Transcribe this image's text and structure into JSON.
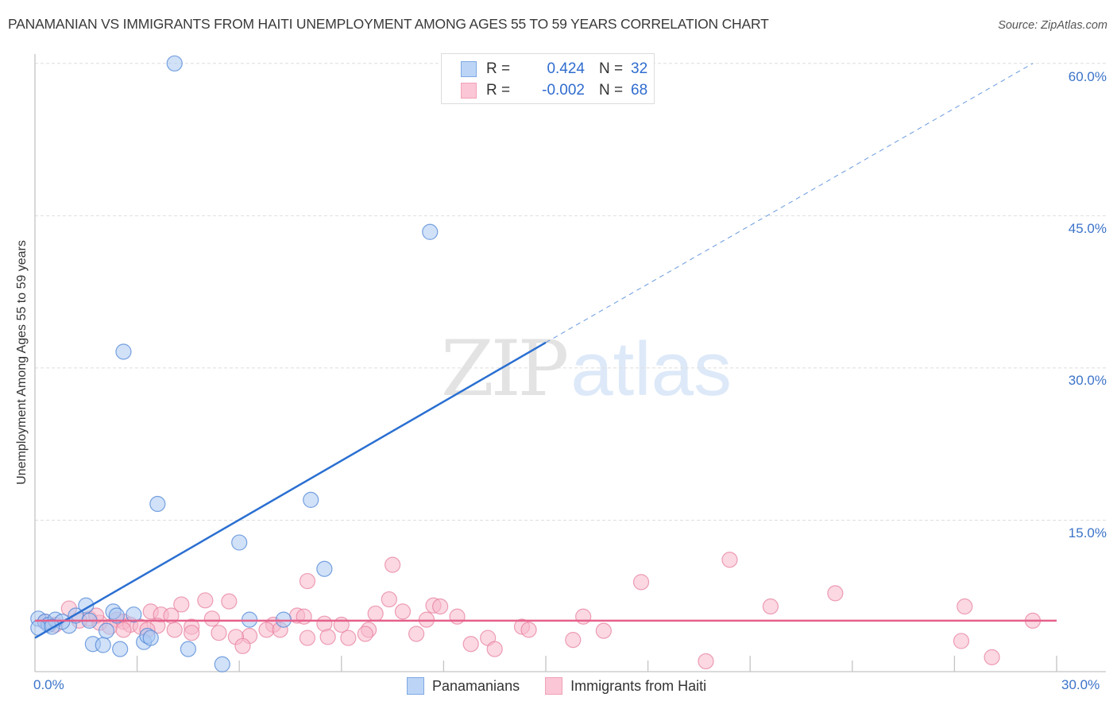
{
  "header": {
    "title": "PANAMANIAN VS IMMIGRANTS FROM HAITI UNEMPLOYMENT AMONG AGES 55 TO 59 YEARS CORRELATION CHART",
    "source": "Source: ZipAtlas.com"
  },
  "watermark": {
    "zip": "ZIP",
    "atlas": "atlas"
  },
  "axes": {
    "ylabel": "Unemployment Among Ages 55 to 59 years",
    "y_ticks": [
      "60.0%",
      "45.0%",
      "30.0%",
      "15.0%"
    ],
    "x_tick_left": "0.0%",
    "x_tick_right": "30.0%"
  },
  "legend": {
    "rows": [
      {
        "r_label": "R =",
        "r_value": "0.424",
        "n_label": "N =",
        "n_value": "32",
        "color": "#a9c8f2"
      },
      {
        "r_label": "R =",
        "r_value": "-0.002",
        "n_label": "N =",
        "n_value": "68",
        "color": "#f7b8cb"
      }
    ]
  },
  "bottom_legend": {
    "items": [
      {
        "label": "Panamanians",
        "color": "#a9c8f2"
      },
      {
        "label": "Immigrants from Haiti",
        "color": "#f7b8cb"
      }
    ]
  },
  "colors": {
    "blue_fill": "#a9c8f2",
    "blue_stroke": "#4f86d6",
    "blue_line": "#2a6fd1",
    "pink_fill": "#f7b8cb",
    "pink_stroke": "#e7809f",
    "pink_line": "#e5608a",
    "tick_text": "#3b73c9"
  },
  "chart_data": {
    "type": "scatter",
    "title": "PANAMANIAN VS IMMIGRANTS FROM HAITI UNEMPLOYMENT AMONG AGES 55 TO 59 YEARS CORRELATION CHART",
    "xlabel": "",
    "ylabel": "Unemployment Among Ages 55 to 59 years",
    "xlim": [
      0,
      30
    ],
    "ylim": [
      0,
      62
    ],
    "x_ticks": [
      0,
      30
    ],
    "y_ticks": [
      15,
      30,
      45,
      60
    ],
    "grid": "horizontal dashed",
    "legend_position": "top-center",
    "series": [
      {
        "name": "Panamanians",
        "R": 0.424,
        "N": 32,
        "trend": {
          "x0": 0,
          "y0": 3.4,
          "x_solid_end": 15.0,
          "y_solid_end": 32.5,
          "x1": 29.3,
          "y1": 60.0
        },
        "points": [
          [
            4.1,
            60.0
          ],
          [
            11.6,
            43.4
          ],
          [
            2.6,
            31.6
          ],
          [
            3.6,
            16.6
          ],
          [
            8.1,
            17.0
          ],
          [
            6.0,
            12.8
          ],
          [
            8.5,
            10.2
          ],
          [
            1.5,
            6.6
          ],
          [
            2.3,
            6.0
          ],
          [
            2.9,
            5.7
          ],
          [
            6.3,
            5.2
          ],
          [
            7.3,
            5.2
          ],
          [
            0.1,
            5.3
          ],
          [
            0.3,
            5.0
          ],
          [
            0.4,
            4.7
          ],
          [
            0.6,
            5.2
          ],
          [
            1.0,
            4.6
          ],
          [
            1.2,
            5.6
          ],
          [
            1.6,
            5.1
          ],
          [
            2.4,
            5.6
          ],
          [
            0.8,
            5.0
          ],
          [
            1.7,
            2.8
          ],
          [
            2.0,
            2.7
          ],
          [
            2.1,
            4.1
          ],
          [
            2.5,
            2.3
          ],
          [
            3.2,
            3.0
          ],
          [
            3.3,
            3.6
          ],
          [
            3.4,
            3.4
          ],
          [
            4.5,
            2.3
          ],
          [
            5.5,
            0.8
          ],
          [
            0.1,
            4.4
          ],
          [
            0.5,
            4.5
          ]
        ]
      },
      {
        "name": "Immigrants from Haiti",
        "R": -0.002,
        "N": 68,
        "trend": {
          "x0": 0,
          "y0": 5.1,
          "x1": 30,
          "y1": 5.1
        },
        "points": [
          [
            10.5,
            10.6
          ],
          [
            20.4,
            11.1
          ],
          [
            8.0,
            9.0
          ],
          [
            17.8,
            8.9
          ],
          [
            23.5,
            7.8
          ],
          [
            10.4,
            7.2
          ],
          [
            5.0,
            7.1
          ],
          [
            5.7,
            7.0
          ],
          [
            4.3,
            6.7
          ],
          [
            21.6,
            6.5
          ],
          [
            27.3,
            6.5
          ],
          [
            11.7,
            6.6
          ],
          [
            11.9,
            6.5
          ],
          [
            3.4,
            6.0
          ],
          [
            1.0,
            6.3
          ],
          [
            3.7,
            5.7
          ],
          [
            10.0,
            5.8
          ],
          [
            10.8,
            6.0
          ],
          [
            7.7,
            5.6
          ],
          [
            7.9,
            5.5
          ],
          [
            12.4,
            5.5
          ],
          [
            16.1,
            5.5
          ],
          [
            11.5,
            5.2
          ],
          [
            5.2,
            5.3
          ],
          [
            2.4,
            5.2
          ],
          [
            29.3,
            5.1
          ],
          [
            1.6,
            5.3
          ],
          [
            1.9,
            4.9
          ],
          [
            2.6,
            5.0
          ],
          [
            2.8,
            4.7
          ],
          [
            3.1,
            4.5
          ],
          [
            2.2,
            4.5
          ],
          [
            7.0,
            4.7
          ],
          [
            9.0,
            4.7
          ],
          [
            8.5,
            4.8
          ],
          [
            14.3,
            4.5
          ],
          [
            4.6,
            4.5
          ],
          [
            3.6,
            4.6
          ],
          [
            3.3,
            4.2
          ],
          [
            4.1,
            4.2
          ],
          [
            6.8,
            4.2
          ],
          [
            7.2,
            4.2
          ],
          [
            2.6,
            4.2
          ],
          [
            14.5,
            4.2
          ],
          [
            9.8,
            4.2
          ],
          [
            16.7,
            4.1
          ],
          [
            4.6,
            3.9
          ],
          [
            5.4,
            3.9
          ],
          [
            6.3,
            3.6
          ],
          [
            9.7,
            3.8
          ],
          [
            11.2,
            3.8
          ],
          [
            5.9,
            3.5
          ],
          [
            8.6,
            3.5
          ],
          [
            8.0,
            3.4
          ],
          [
            9.2,
            3.4
          ],
          [
            13.3,
            3.4
          ],
          [
            15.8,
            3.2
          ],
          [
            27.2,
            3.1
          ],
          [
            12.8,
            2.8
          ],
          [
            6.1,
            2.6
          ],
          [
            13.5,
            2.3
          ],
          [
            19.7,
            1.1
          ],
          [
            28.1,
            1.5
          ],
          [
            1.3,
            5.1
          ],
          [
            0.6,
            4.7
          ],
          [
            0.3,
            5.0
          ],
          [
            1.8,
            5.6
          ],
          [
            4.0,
            5.6
          ]
        ]
      }
    ]
  }
}
